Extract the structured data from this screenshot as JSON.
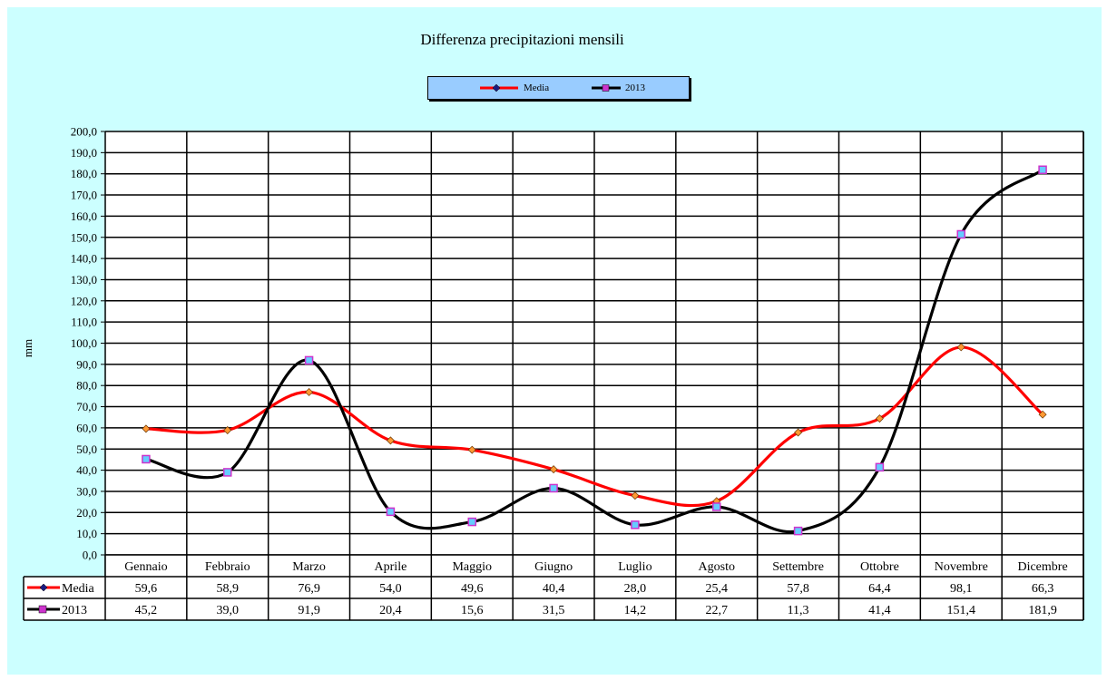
{
  "chart_data": {
    "type": "line",
    "title": "Differenza precipitazioni mensili",
    "ylabel": "mm",
    "xlabel": "",
    "ylim": [
      0,
      200
    ],
    "y_ticks": [
      "0,0",
      "10,0",
      "20,0",
      "30,0",
      "40,0",
      "50,0",
      "60,0",
      "70,0",
      "80,0",
      "90,0",
      "100,0",
      "110,0",
      "120,0",
      "130,0",
      "140,0",
      "150,0",
      "160,0",
      "170,0",
      "180,0",
      "190,0",
      "200,0"
    ],
    "categories": [
      "Gennaio",
      "Febbraio",
      "Marzo",
      "Aprile",
      "Maggio",
      "Giugno",
      "Luglio",
      "Agosto",
      "Settembre",
      "Ottobre",
      "Novembre",
      "Dicembre"
    ],
    "series": [
      {
        "name": "Media",
        "color": "#ff0000",
        "marker": "diamond",
        "marker_color": "#ff9933",
        "values": [
          59.6,
          58.9,
          76.9,
          54.0,
          49.6,
          40.4,
          28.0,
          25.4,
          57.8,
          64.4,
          98.1,
          66.3
        ],
        "labels": [
          "59,6",
          "58,9",
          "76,9",
          "54,0",
          "49,6",
          "40,4",
          "28,0",
          "25,4",
          "57,8",
          "64,4",
          "98,1",
          "66,3"
        ]
      },
      {
        "name": "2013",
        "color": "#000000",
        "marker": "square",
        "marker_color": "#66ccff",
        "marker_border": "#cc33cc",
        "values": [
          45.2,
          39.0,
          91.9,
          20.4,
          15.6,
          31.5,
          14.2,
          22.7,
          11.3,
          41.4,
          151.4,
          181.9
        ],
        "labels": [
          "45,2",
          "39,0",
          "91,9",
          "20,4",
          "15,6",
          "31,5",
          "14,2",
          "22,7",
          "11,3",
          "41,4",
          "151,4",
          "181,9"
        ]
      }
    ],
    "grid": true,
    "legend_position": "top-center",
    "data_table": true
  },
  "colors": {
    "background": "#ccffff",
    "legend_background": "#99ccff"
  }
}
